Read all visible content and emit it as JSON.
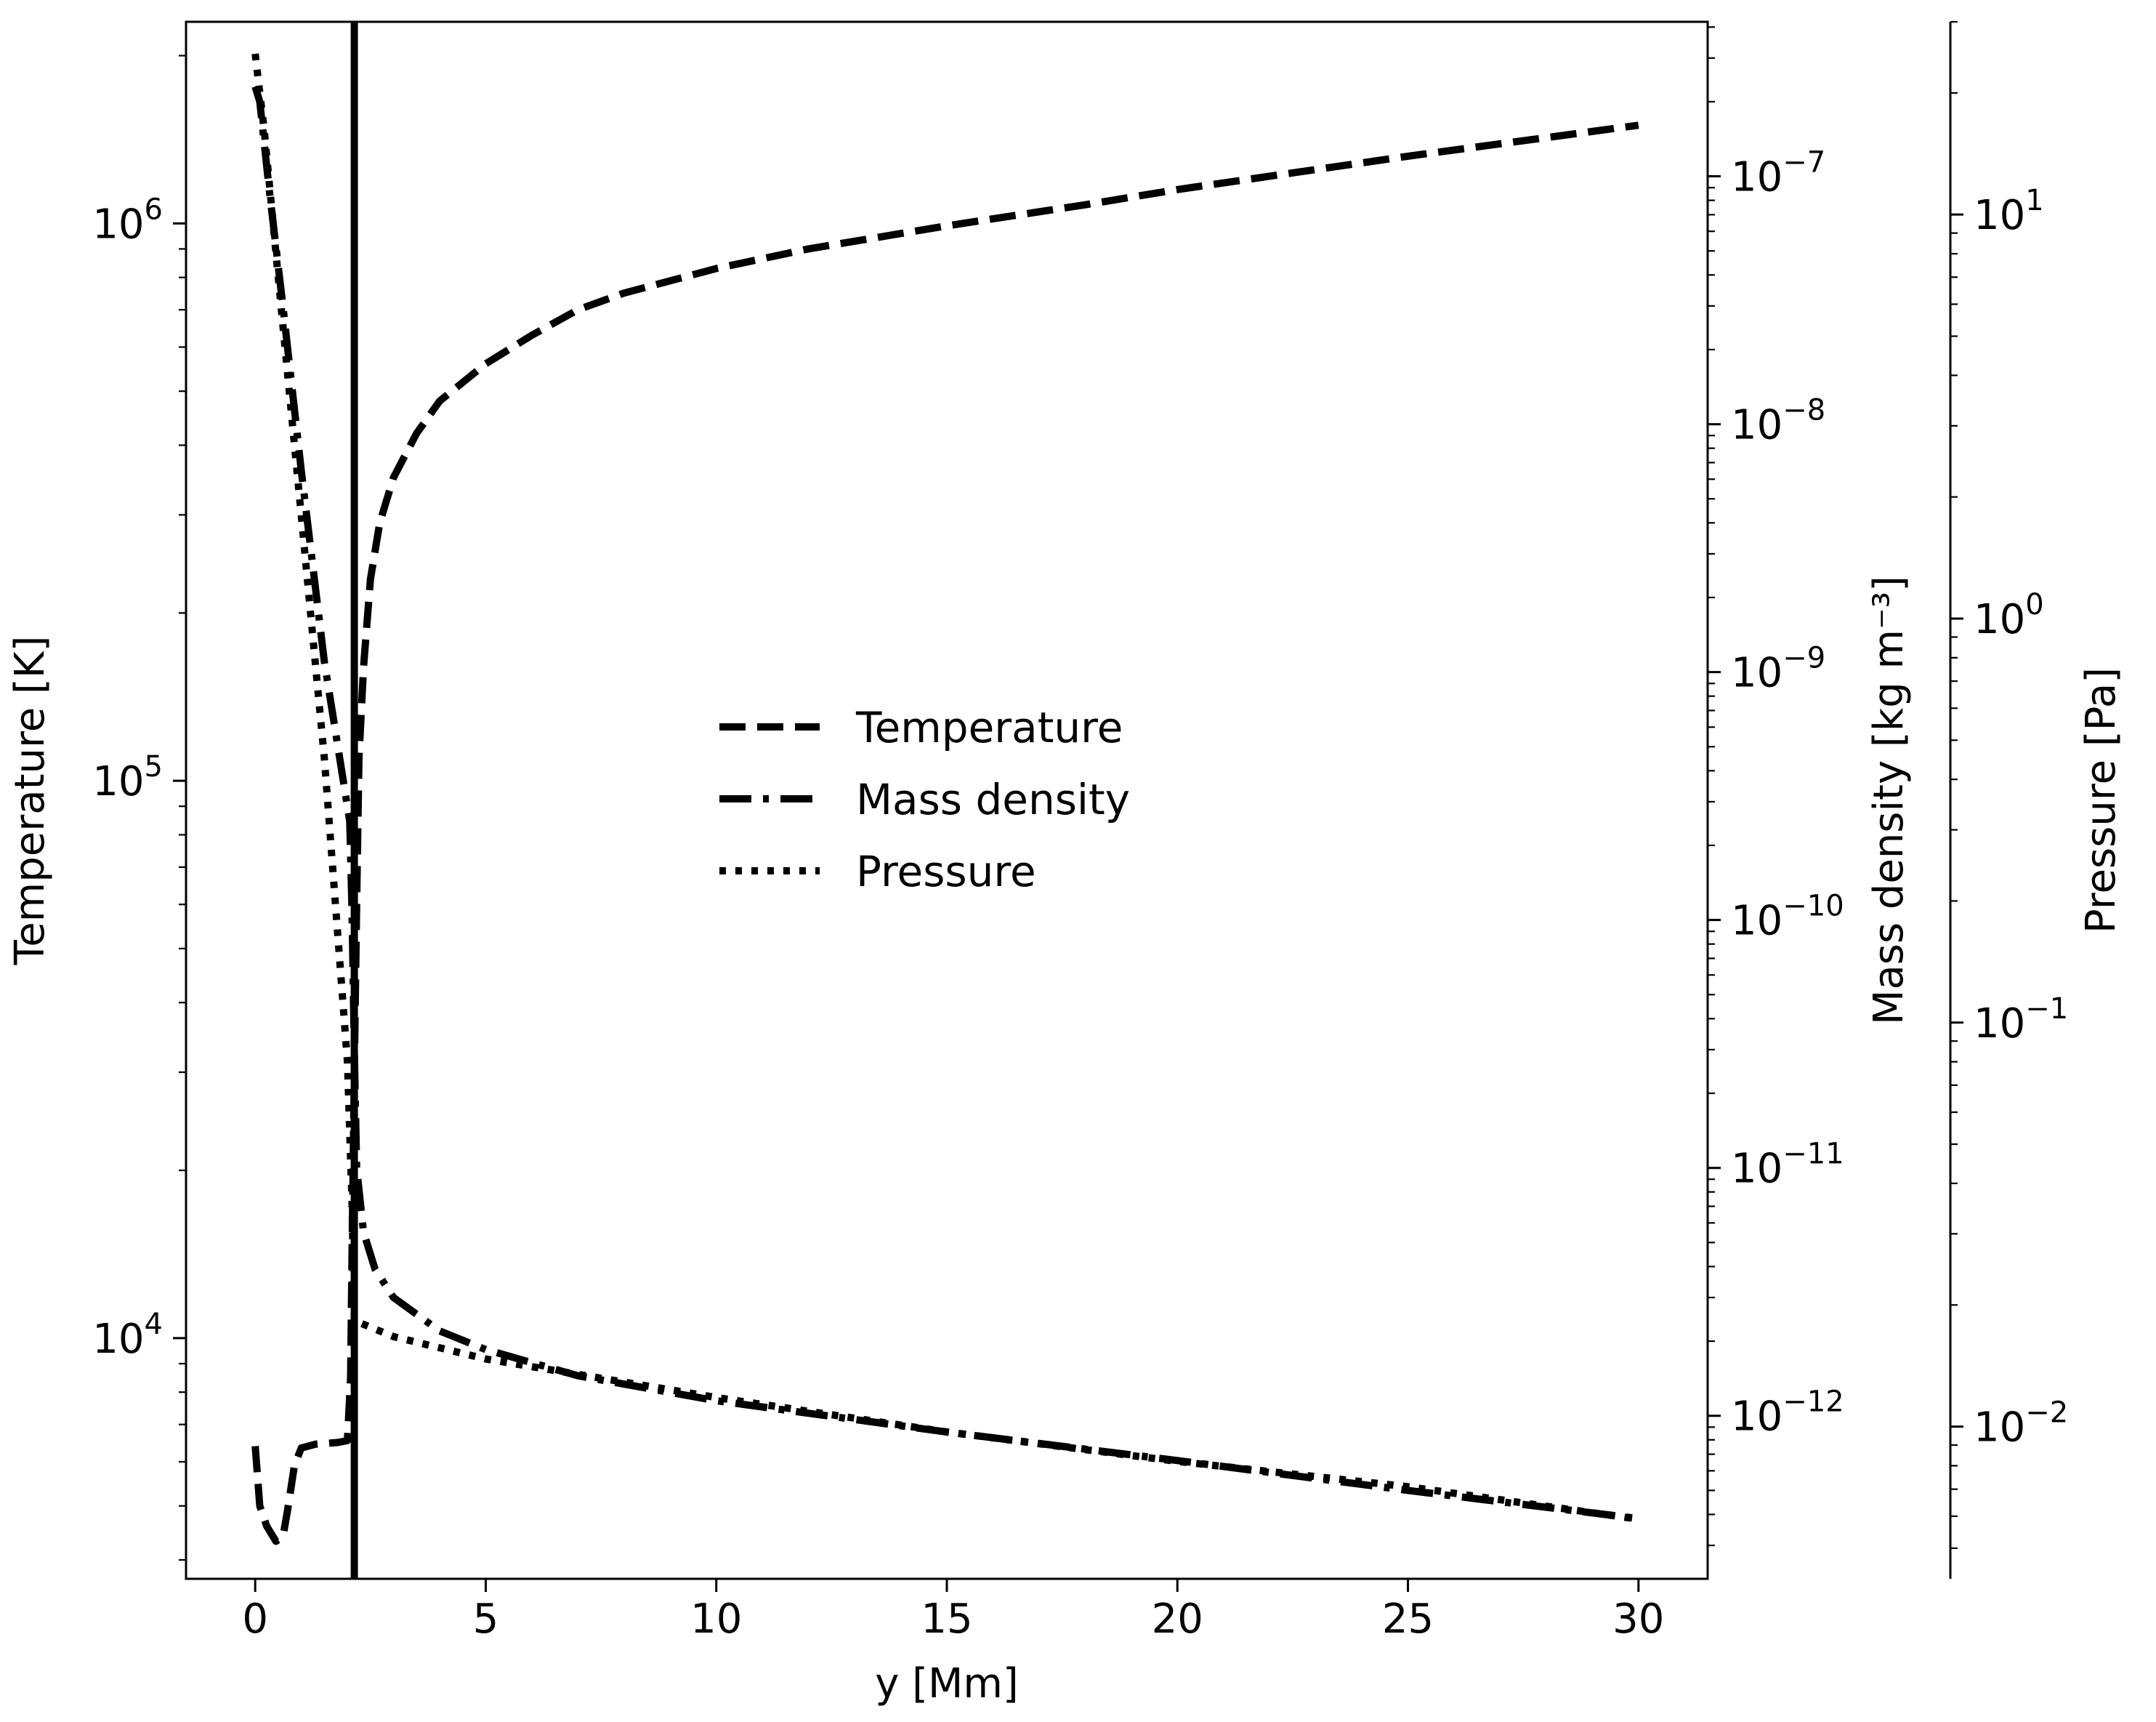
{
  "chart_data": {
    "type": "line",
    "xlabel": "y [Mm]",
    "xlim": [
      -1.5,
      31.5
    ],
    "xticks": [
      0,
      5,
      10,
      15,
      20,
      25,
      30
    ],
    "axes": {
      "left": {
        "label": "Temperature [K]",
        "scale": "log",
        "lim": [
          3700,
          2300000
        ],
        "tick_exponents": [
          4,
          5,
          6
        ]
      },
      "right1": {
        "label": "Mass density [kg m⁻³]",
        "scale": "log",
        "lim": [
          2.2e-13,
          4.2e-07
        ],
        "tick_exponents": [
          -12,
          -11,
          -10,
          -9,
          -8,
          -7
        ]
      },
      "right2": {
        "label": "Pressure [Pa]",
        "scale": "log",
        "lim": [
          0.0042,
          30
        ],
        "tick_exponents": [
          -2,
          -1,
          0,
          1
        ]
      }
    },
    "vline": {
      "x": 2.15
    },
    "legend": {
      "placement": "center"
    },
    "series": [
      {
        "name": "Temperature",
        "axis": "left",
        "style": "dashed",
        "points": [
          [
            0,
            6400
          ],
          [
            0.1,
            5000
          ],
          [
            0.25,
            4600
          ],
          [
            0.45,
            4320
          ],
          [
            0.6,
            4400
          ],
          [
            0.7,
            4900
          ],
          [
            0.85,
            5900
          ],
          [
            1.0,
            6350
          ],
          [
            1.3,
            6450
          ],
          [
            1.8,
            6500
          ],
          [
            2.0,
            6550
          ],
          [
            2.07,
            8500
          ],
          [
            2.1,
            14000
          ],
          [
            2.15,
            30000
          ],
          [
            2.2,
            60000
          ],
          [
            2.25,
            110000
          ],
          [
            2.35,
            160000
          ],
          [
            2.5,
            230000
          ],
          [
            2.7,
            290000
          ],
          [
            3.0,
            350000
          ],
          [
            3.5,
            420000
          ],
          [
            4.0,
            480000
          ],
          [
            5.0,
            560000
          ],
          [
            6.0,
            630000
          ],
          [
            7.0,
            700000
          ],
          [
            8.0,
            750000
          ],
          [
            10.0,
            830000
          ],
          [
            12.0,
            900000
          ],
          [
            15.0,
            990000
          ],
          [
            18.0,
            1080000
          ],
          [
            20.0,
            1150000
          ],
          [
            25.0,
            1320000
          ],
          [
            30.0,
            1500000
          ]
        ]
      },
      {
        "name": "Mass density",
        "axis": "right1",
        "style": "dashdot",
        "points": [
          [
            0,
            2.3e-07
          ],
          [
            0.1,
            2e-07
          ],
          [
            0.3,
            9e-08
          ],
          [
            0.6,
            3e-08
          ],
          [
            1.0,
            6.5e-09
          ],
          [
            1.5,
            1.1e-09
          ],
          [
            2.05,
            2.5e-10
          ],
          [
            2.1,
            1.1e-10
          ],
          [
            2.15,
            3e-11
          ],
          [
            2.2,
            1e-11
          ],
          [
            2.35,
            5.5e-12
          ],
          [
            2.6,
            3.9e-12
          ],
          [
            3.0,
            3e-12
          ],
          [
            4.0,
            2.2e-12
          ],
          [
            5.0,
            1.85e-12
          ],
          [
            7.0,
            1.45e-12
          ],
          [
            10.0,
            1.15e-12
          ],
          [
            15.0,
            8.6e-13
          ],
          [
            20.0,
            6.6e-13
          ],
          [
            25.0,
            5e-13
          ],
          [
            30.0,
            3.85e-13
          ]
        ]
      },
      {
        "name": "Pressure",
        "axis": "right2",
        "style": "dotted",
        "points": [
          [
            0,
            25
          ],
          [
            0.2,
            16
          ],
          [
            0.5,
            7
          ],
          [
            1.0,
            1.8
          ],
          [
            1.5,
            0.45
          ],
          [
            2.0,
            0.08
          ],
          [
            2.1,
            0.036
          ],
          [
            2.15,
            0.0183
          ],
          [
            3.0,
            0.0167
          ],
          [
            5.0,
            0.0147
          ],
          [
            10.0,
            0.0118
          ],
          [
            15.0,
            0.0097
          ],
          [
            20.0,
            0.0082
          ],
          [
            25.0,
            0.0071
          ],
          [
            30.0,
            0.0059
          ]
        ]
      }
    ]
  }
}
